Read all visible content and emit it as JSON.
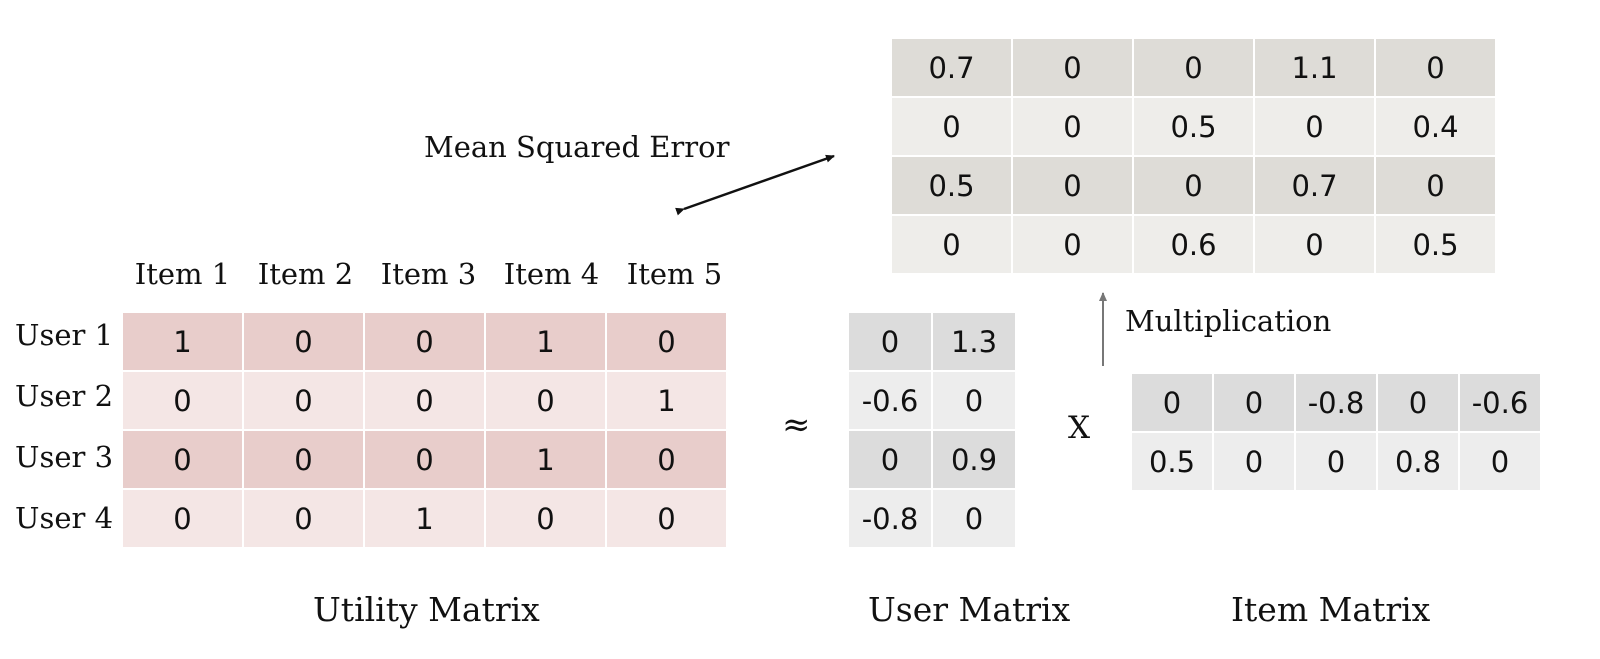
{
  "labels": {
    "mse": "Mean Squared Error",
    "multiplication": "Multiplication",
    "approx": "≈",
    "times": "X"
  },
  "captions": {
    "utility": "Utility Matrix",
    "user": "User Matrix",
    "item": "Item Matrix"
  },
  "utility": {
    "col_headers": [
      "Item 1",
      "Item 2",
      "Item 3",
      "Item 4",
      "Item 5"
    ],
    "row_headers": [
      "User 1",
      "User 2",
      "User 3",
      "User 4"
    ],
    "rows": [
      [
        "1",
        "0",
        "0",
        "1",
        "0"
      ],
      [
        "0",
        "0",
        "0",
        "0",
        "1"
      ],
      [
        "0",
        "0",
        "0",
        "1",
        "0"
      ],
      [
        "0",
        "0",
        "1",
        "0",
        "0"
      ]
    ]
  },
  "user_matrix": {
    "rows": [
      [
        "0",
        "1.3"
      ],
      [
        "-0.6",
        "0"
      ],
      [
        "0",
        "0.9"
      ],
      [
        "-0.8",
        "0"
      ]
    ]
  },
  "item_matrix": {
    "rows": [
      [
        "0",
        "0",
        "-0.8",
        "0",
        "-0.6"
      ],
      [
        "0.5",
        "0",
        "0",
        "0.8",
        "0"
      ]
    ]
  },
  "result_matrix": {
    "rows": [
      [
        "0.7",
        "0",
        "0",
        "1.1",
        "0"
      ],
      [
        "0",
        "0",
        "0.5",
        "0",
        "0.4"
      ],
      [
        "0.5",
        "0",
        "0",
        "0.7",
        "0"
      ],
      [
        "0",
        "0",
        "0.6",
        "0",
        "0.5"
      ]
    ]
  },
  "colors": {
    "utility_dark": "#E8CDCB",
    "utility_light": "#F4E6E5",
    "gray_dark": "#DCDCDC",
    "gray_light": "#EDEDED",
    "result_dark": "#DEDCD7",
    "result_light": "#EEEDEA"
  }
}
